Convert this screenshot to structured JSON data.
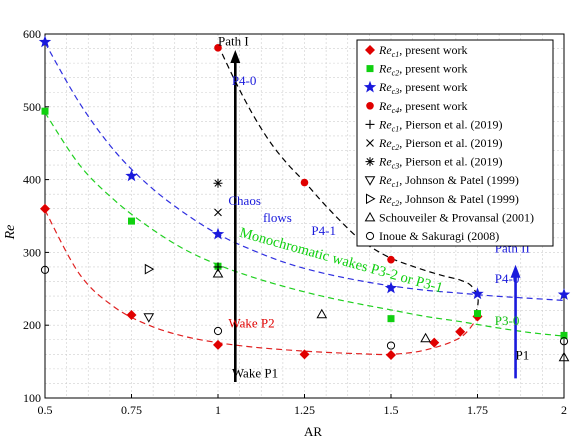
{
  "chart_data": {
    "type": "scatter",
    "xlabel": "AR",
    "ylabel": "Re",
    "xlim": [
      0.5,
      2.0
    ],
    "ylim": [
      100,
      600
    ],
    "x_ticks": [
      0.5,
      0.75,
      1,
      1.25,
      1.5,
      1.75,
      2
    ],
    "x_tick_labels": [
      "0.5",
      "0.75",
      "1",
      "1.25",
      "1.5",
      "1.75",
      "2"
    ],
    "y_ticks": [
      100,
      200,
      300,
      400,
      500,
      600
    ],
    "y_tick_labels": [
      "100",
      "200",
      "300",
      "400",
      "500",
      "600"
    ],
    "grid": true,
    "legend_position": "top-right",
    "series": [
      {
        "legend_prefix": "Re",
        "legend_sub": "c1",
        "legend_suffix": ", present work",
        "marker": "diamond",
        "color": "#e00000",
        "points": [
          [
            0.5,
            360
          ],
          [
            0.75,
            214
          ],
          [
            1.0,
            173
          ],
          [
            1.25,
            160
          ],
          [
            1.5,
            159
          ],
          [
            1.625,
            176
          ],
          [
            1.7,
            191
          ],
          [
            1.75,
            212
          ]
        ]
      },
      {
        "legend_prefix": "Re",
        "legend_sub": "c2",
        "legend_suffix": ", present work",
        "marker": "square",
        "color": "#10d010",
        "points": [
          [
            0.5,
            494
          ],
          [
            0.75,
            343
          ],
          [
            1.0,
            281
          ],
          [
            1.5,
            209
          ],
          [
            1.75,
            216
          ],
          [
            2.0,
            186
          ]
        ]
      },
      {
        "legend_prefix": "Re",
        "legend_sub": "c3",
        "legend_suffix": ", present work",
        "marker": "star",
        "color": "#1a1adc",
        "points": [
          [
            0.5,
            589
          ],
          [
            0.75,
            405
          ],
          [
            1.0,
            325
          ],
          [
            1.5,
            251
          ],
          [
            1.75,
            243
          ],
          [
            2.0,
            242
          ]
        ]
      },
      {
        "legend_prefix": "Re",
        "legend_sub": "c4",
        "legend_suffix": ", present work",
        "marker": "circle",
        "color": "#e00000",
        "points": [
          [
            1.0,
            581
          ],
          [
            1.25,
            396
          ],
          [
            1.5,
            290
          ]
        ]
      },
      {
        "legend_prefix": "Re",
        "legend_sub": "c1",
        "legend_suffix": ", Pierson et al. (2019)",
        "marker": "plus",
        "color": "#000000",
        "points": [
          [
            1.0,
            280
          ]
        ]
      },
      {
        "legend_prefix": "Re",
        "legend_sub": "c2",
        "legend_suffix": ", Pierson et al. (2019)",
        "marker": "cross",
        "color": "#000000",
        "points": [
          [
            1.0,
            355
          ]
        ]
      },
      {
        "legend_prefix": "Re",
        "legend_sub": "c3",
        "legend_suffix": ", Pierson et al. (2019)",
        "marker": "asterisk",
        "color": "#000000",
        "points": [
          [
            1.0,
            395
          ]
        ]
      },
      {
        "legend_prefix": "Re",
        "legend_sub": "c1",
        "legend_suffix": ", Johnson & Patel (1999)",
        "marker": "tri-down",
        "color": "#000000",
        "points": [
          [
            0.8,
            211
          ]
        ]
      },
      {
        "legend_prefix": "Re",
        "legend_sub": "c2",
        "legend_suffix": ", Johnson & Patel (1999)",
        "marker": "tri-right",
        "color": "#000000",
        "points": [
          [
            0.8,
            277
          ]
        ]
      },
      {
        "legend_prefix": "",
        "legend_sub": "",
        "legend_suffix": "Schouveiler & Provansal (2001)",
        "marker": "tri-up",
        "color": "#000000",
        "points": [
          [
            1.0,
            271
          ],
          [
            1.3,
            215
          ],
          [
            1.6,
            182
          ],
          [
            2.0,
            156
          ]
        ]
      },
      {
        "legend_prefix": "",
        "legend_sub": "",
        "legend_suffix": "Inoue & Sakuragi (2008)",
        "marker": "circle-open",
        "color": "#000000",
        "points": [
          [
            0.5,
            276
          ],
          [
            1.0,
            192
          ],
          [
            1.5,
            172
          ],
          [
            2.0,
            178
          ]
        ]
      }
    ],
    "curves": [
      {
        "name": "fit-c1",
        "color": "#e02020",
        "points": [
          [
            0.5,
            358
          ],
          [
            0.6,
            270
          ],
          [
            0.7,
            225
          ],
          [
            0.8,
            200
          ],
          [
            0.9,
            185
          ],
          [
            1.0,
            176
          ],
          [
            1.1,
            170
          ],
          [
            1.2,
            166
          ],
          [
            1.3,
            163
          ],
          [
            1.4,
            161
          ],
          [
            1.5,
            160
          ],
          [
            1.6,
            166
          ],
          [
            1.7,
            183
          ],
          [
            1.75,
            210
          ]
        ]
      },
      {
        "name": "fit-c2",
        "color": "#20d020",
        "points": [
          [
            0.5,
            492
          ],
          [
            0.6,
            420
          ],
          [
            0.7,
            372
          ],
          [
            0.8,
            335
          ],
          [
            0.9,
            305
          ],
          [
            1.0,
            283
          ],
          [
            1.1,
            266
          ],
          [
            1.2,
            252
          ],
          [
            1.3,
            240
          ],
          [
            1.4,
            230
          ],
          [
            1.5,
            221
          ],
          [
            1.6,
            212
          ],
          [
            1.7,
            205
          ],
          [
            1.8,
            197
          ],
          [
            1.9,
            190
          ],
          [
            2.0,
            185
          ]
        ]
      },
      {
        "name": "fit-c3",
        "color": "#3030e0",
        "points": [
          [
            0.5,
            588
          ],
          [
            0.6,
            505
          ],
          [
            0.7,
            440
          ],
          [
            0.8,
            392
          ],
          [
            0.9,
            355
          ],
          [
            1.0,
            325
          ],
          [
            1.1,
            303
          ],
          [
            1.2,
            285
          ],
          [
            1.3,
            272
          ],
          [
            1.4,
            262
          ],
          [
            1.5,
            254
          ],
          [
            1.6,
            248
          ],
          [
            1.7,
            244
          ],
          [
            1.8,
            240
          ],
          [
            1.9,
            237
          ],
          [
            2.0,
            234
          ]
        ]
      },
      {
        "name": "fit-c4",
        "color": "#000000",
        "points": [
          [
            1.0,
            585
          ],
          [
            1.05,
            535
          ],
          [
            1.1,
            490
          ],
          [
            1.15,
            452
          ],
          [
            1.2,
            422
          ],
          [
            1.25,
            397
          ],
          [
            1.3,
            370
          ],
          [
            1.35,
            345
          ],
          [
            1.4,
            322
          ],
          [
            1.45,
            305
          ],
          [
            1.5,
            292
          ],
          [
            1.55,
            283
          ],
          [
            1.6,
            275
          ],
          [
            1.65,
            268
          ],
          [
            1.7,
            262
          ],
          [
            1.73,
            255
          ],
          [
            1.75,
            240
          ],
          [
            1.75,
            225
          ],
          [
            1.74,
            212
          ]
        ]
      }
    ],
    "annotations": [
      {
        "text": "Path I",
        "x": 1.0,
        "y": 584,
        "color": "#000000"
      },
      {
        "text": "P4-0",
        "x": 1.04,
        "y": 530,
        "color": "#1a1adc"
      },
      {
        "text": "Chaos",
        "x": 1.03,
        "y": 365,
        "color": "#1a1adc"
      },
      {
        "text": "flows",
        "x": 1.13,
        "y": 342,
        "color": "#1a1adc"
      },
      {
        "text": "P4-1",
        "x": 1.27,
        "y": 324,
        "color": "#1a1adc"
      },
      {
        "text": "Wake P2",
        "x": 1.03,
        "y": 197,
        "color": "#e00000"
      },
      {
        "text": "Wake P1",
        "x": 1.04,
        "y": 128,
        "color": "#000000"
      },
      {
        "text": "Path II",
        "x": 1.8,
        "y": 300,
        "color": "#1a1adc"
      },
      {
        "text": "P4-0",
        "x": 1.8,
        "y": 258,
        "color": "#1a1adc"
      },
      {
        "text": "P3-0",
        "x": 1.8,
        "y": 200,
        "color": "#10c010"
      },
      {
        "text": "P1",
        "x": 1.86,
        "y": 153,
        "color": "#000000"
      }
    ],
    "rotated_annotation": {
      "text": "Monochromatic wakes P3-2 or P3-1",
      "x": 1.06,
      "y": 322,
      "angle": 15.5,
      "color": "#10d010"
    },
    "arrows": [
      {
        "name": "path-i-arrow",
        "x": 1.05,
        "y_from": 122,
        "y_to": 578,
        "color": "#000000"
      },
      {
        "name": "path-ii-arrow",
        "x": 1.86,
        "y_from": 127,
        "y_to": 283,
        "color": "#1a1adc"
      }
    ]
  }
}
